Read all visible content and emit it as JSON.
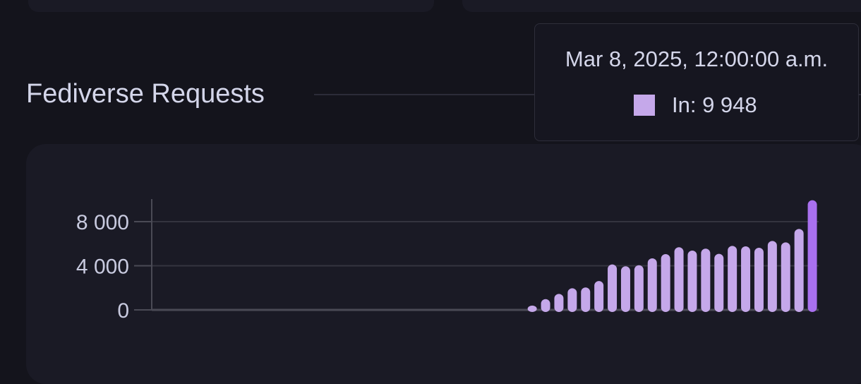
{
  "section": {
    "title": "Fediverse Requests"
  },
  "tooltip": {
    "date": "Mar 8, 2025, 12:00:00 a.m.",
    "series_label": "In: 9 948",
    "swatch_color": "#c5a8ea"
  },
  "chart_data": {
    "type": "bar",
    "title": "",
    "xlabel": "",
    "ylabel": "",
    "ylim": [
      0,
      10000
    ],
    "yticks": [
      0,
      4000,
      8000
    ],
    "ytick_labels": [
      "0",
      "4 000",
      "8 000"
    ],
    "grid": true,
    "series": [
      {
        "name": "In",
        "color": "#c5a8ea",
        "highlight_color": "#a970ef",
        "values": [
          0,
          0,
          0,
          0,
          0,
          0,
          0,
          0,
          0,
          0,
          0,
          0,
          0,
          0,
          0,
          0,
          0,
          0,
          0,
          0,
          0,
          0,
          0,
          0,
          0,
          0,
          0,
          0,
          390,
          980,
          1450,
          1960,
          2030,
          2620,
          4120,
          3950,
          4050,
          4670,
          5060,
          5680,
          5380,
          5550,
          5080,
          5800,
          5760,
          5630,
          6250,
          6120,
          7340,
          9948
        ]
      }
    ],
    "last_date": "Mar 8, 2025",
    "highlighted_index": 49
  }
}
